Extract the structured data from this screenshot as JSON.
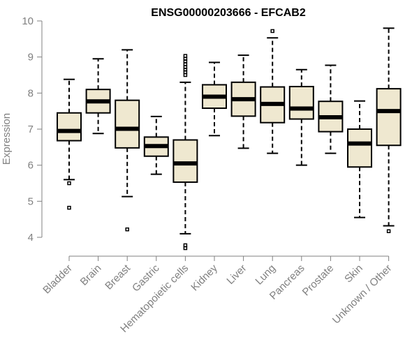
{
  "chart_data": {
    "type": "boxplot",
    "title": "ENSG00000203666 - EFCAB2",
    "xlabel": "",
    "ylabel": "Expression",
    "ylim": [
      4,
      10
    ],
    "yticks": [
      4,
      5,
      6,
      7,
      8,
      9,
      10
    ],
    "grid": false,
    "legend": "none",
    "colors": {
      "box_fill": "#efe8d0",
      "stroke": "#000000",
      "axis": "#808080",
      "text": "#808080"
    },
    "categories": [
      "Bladder",
      "Brain",
      "Breast",
      "Gastric",
      "Hematopoietic cells",
      "Kidney",
      "Liver",
      "Lung",
      "Pancreas",
      "Prostate",
      "Skin",
      "Unknown / Other"
    ],
    "boxes": [
      {
        "name": "Bladder",
        "whisker_low": 5.6,
        "q1": 6.68,
        "median": 6.95,
        "q3": 7.45,
        "whisker_high": 8.38,
        "outliers": [
          5.5,
          4.82
        ]
      },
      {
        "name": "Brain",
        "whisker_low": 6.88,
        "q1": 7.45,
        "median": 7.77,
        "q3": 8.1,
        "whisker_high": 8.95,
        "outliers": []
      },
      {
        "name": "Breast",
        "whisker_low": 5.13,
        "q1": 6.48,
        "median": 7.01,
        "q3": 7.8,
        "whisker_high": 9.2,
        "outliers": [
          4.22
        ]
      },
      {
        "name": "Gastric",
        "whisker_low": 5.75,
        "q1": 6.25,
        "median": 6.53,
        "q3": 6.78,
        "whisker_high": 7.35,
        "outliers": []
      },
      {
        "name": "Hematopoietic cells",
        "whisker_low": 4.1,
        "q1": 5.53,
        "median": 6.05,
        "q3": 6.7,
        "whisker_high": 8.3,
        "outliers": [
          8.5,
          8.58,
          8.65,
          8.72,
          8.8,
          8.88,
          8.95,
          9.03,
          3.78,
          3.7
        ]
      },
      {
        "name": "Kidney",
        "whisker_low": 6.82,
        "q1": 7.58,
        "median": 7.9,
        "q3": 8.23,
        "whisker_high": 8.85,
        "outliers": []
      },
      {
        "name": "Liver",
        "whisker_low": 6.47,
        "q1": 7.36,
        "median": 7.83,
        "q3": 8.3,
        "whisker_high": 9.05,
        "outliers": []
      },
      {
        "name": "Lung",
        "whisker_low": 6.33,
        "q1": 7.18,
        "median": 7.7,
        "q3": 8.17,
        "whisker_high": 9.53,
        "outliers": [
          9.72
        ]
      },
      {
        "name": "Pancreas",
        "whisker_low": 6.0,
        "q1": 7.28,
        "median": 7.57,
        "q3": 8.18,
        "whisker_high": 8.65,
        "outliers": []
      },
      {
        "name": "Prostate",
        "whisker_low": 6.33,
        "q1": 6.93,
        "median": 7.33,
        "q3": 7.77,
        "whisker_high": 8.77,
        "outliers": []
      },
      {
        "name": "Skin",
        "whisker_low": 4.55,
        "q1": 5.95,
        "median": 6.6,
        "q3": 7.0,
        "whisker_high": 7.78,
        "outliers": []
      },
      {
        "name": "Unknown / Other",
        "whisker_low": 4.32,
        "q1": 6.55,
        "median": 7.5,
        "q3": 8.12,
        "whisker_high": 9.8,
        "outliers": [
          4.17
        ]
      }
    ]
  }
}
